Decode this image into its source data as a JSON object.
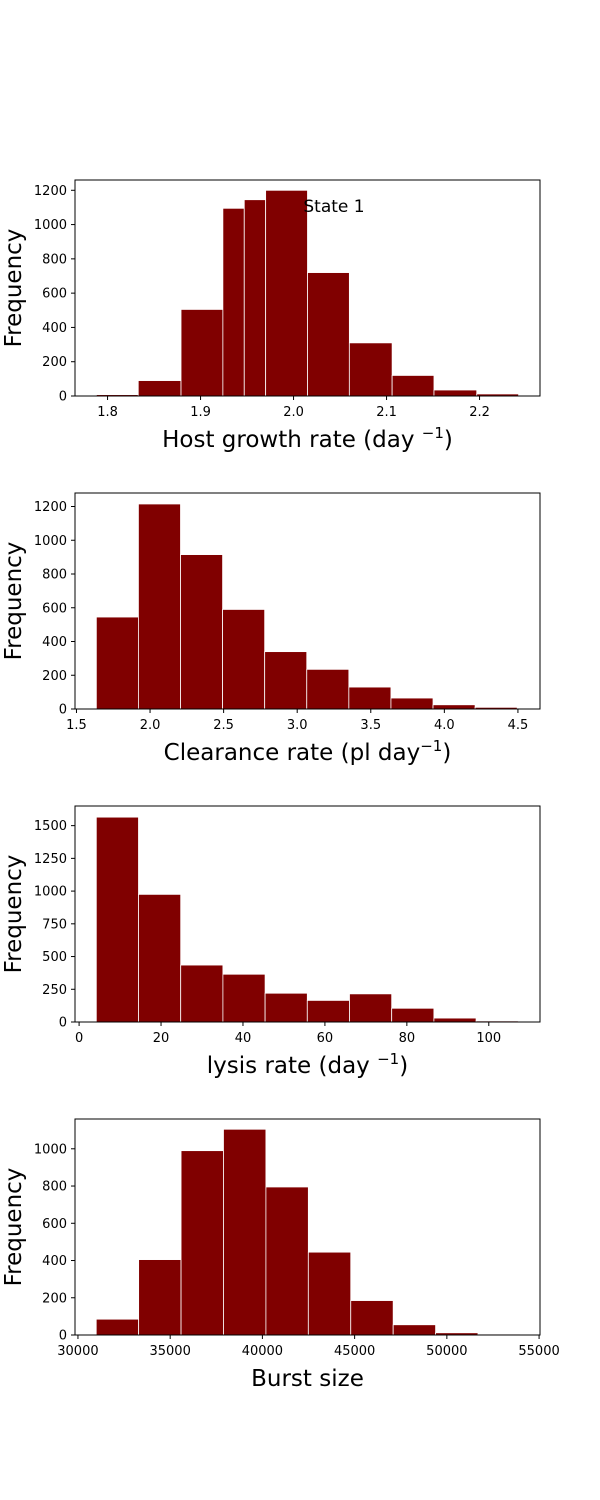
{
  "figure": {
    "bar_color": "#800000",
    "edge_color": "#ffffff"
  },
  "chart_data": [
    {
      "type": "bar",
      "annotation": "State 1",
      "xlabel_main": "Host growth rate (day ",
      "xlabel_sup": "−1",
      "xlabel_end": ")",
      "ylabel": "Frequency",
      "xlim": [
        1.765,
        2.265
      ],
      "ylim": [
        0,
        1260
      ],
      "xticks": [
        1.8,
        1.9,
        2.0,
        2.1,
        2.2
      ],
      "xtick_labels": [
        "1.8",
        "1.9",
        "2.0",
        "2.1",
        "2.2"
      ],
      "yticks": [
        0,
        200,
        400,
        600,
        800,
        1000,
        1200
      ],
      "ytick_labels": [
        "0",
        "200",
        "400",
        "600",
        "800",
        "1000",
        "1200"
      ],
      "bins": [
        {
          "x0": 1.788,
          "x1": 1.833,
          "value": 8
        },
        {
          "x0": 1.833,
          "x1": 1.879,
          "value": 90
        },
        {
          "x0": 1.879,
          "x1": 1.924,
          "value": 505
        },
        {
          "x0": 1.924,
          "x1": 1.947,
          "value": 1095
        },
        {
          "x0": 1.947,
          "x1": 1.97,
          "value": 1145
        },
        {
          "x0": 1.97,
          "x1": 2.015,
          "value": 1200
        },
        {
          "x0": 2.015,
          "x1": 2.06,
          "value": 720
        },
        {
          "x0": 2.06,
          "x1": 2.106,
          "value": 310
        },
        {
          "x0": 2.106,
          "x1": 2.151,
          "value": 120
        },
        {
          "x0": 2.151,
          "x1": 2.197,
          "value": 35
        },
        {
          "x0": 2.197,
          "x1": 2.242,
          "value": 12
        }
      ]
    },
    {
      "type": "bar",
      "xlabel_main": "Clearance rate (pl day",
      "xlabel_sup": "−1",
      "xlabel_end": ")",
      "ylabel": "Frequency",
      "xlim": [
        1.49,
        4.65
      ],
      "ylim": [
        0,
        1280
      ],
      "xticks": [
        1.5,
        2.0,
        2.5,
        3.0,
        3.5,
        4.0,
        4.5
      ],
      "xtick_labels": [
        "1.5",
        "2.0",
        "2.5",
        "3.0",
        "3.5",
        "4.0",
        "4.5"
      ],
      "yticks": [
        0,
        200,
        400,
        600,
        800,
        1000,
        1200
      ],
      "ytick_labels": [
        "0",
        "200",
        "400",
        "600",
        "800",
        "1000",
        "1200"
      ],
      "bins": [
        {
          "x0": 1.635,
          "x1": 1.921,
          "value": 545
        },
        {
          "x0": 1.921,
          "x1": 2.207,
          "value": 1215
        },
        {
          "x0": 2.207,
          "x1": 2.493,
          "value": 915
        },
        {
          "x0": 2.493,
          "x1": 2.779,
          "value": 590
        },
        {
          "x0": 2.779,
          "x1": 3.065,
          "value": 340
        },
        {
          "x0": 3.065,
          "x1": 3.351,
          "value": 235
        },
        {
          "x0": 3.351,
          "x1": 3.637,
          "value": 130
        },
        {
          "x0": 3.637,
          "x1": 3.923,
          "value": 65
        },
        {
          "x0": 3.923,
          "x1": 4.209,
          "value": 25
        },
        {
          "x0": 4.209,
          "x1": 4.495,
          "value": 10
        }
      ]
    },
    {
      "type": "bar",
      "xlabel_main": "lysis rate (day ",
      "xlabel_sup": "−1",
      "xlabel_end": ")",
      "ylabel": "Frequency",
      "xlim": [
        -1.0,
        112.5
      ],
      "ylim": [
        0,
        1650
      ],
      "xticks": [
        0,
        20,
        40,
        60,
        80,
        100
      ],
      "xtick_labels": [
        "0",
        "20",
        "40",
        "60",
        "80",
        "100"
      ],
      "yticks": [
        0,
        250,
        500,
        750,
        1000,
        1250,
        1500
      ],
      "ytick_labels": [
        "0",
        "250",
        "500",
        "750",
        "1000",
        "1250",
        "1500"
      ],
      "bins": [
        {
          "x0": 4.2,
          "x1": 14.5,
          "value": 1565
        },
        {
          "x0": 14.5,
          "x1": 24.8,
          "value": 975
        },
        {
          "x0": 24.8,
          "x1": 35.1,
          "value": 435
        },
        {
          "x0": 35.1,
          "x1": 45.4,
          "value": 365
        },
        {
          "x0": 45.4,
          "x1": 55.7,
          "value": 220
        },
        {
          "x0": 55.7,
          "x1": 66.0,
          "value": 165
        },
        {
          "x0": 66.0,
          "x1": 76.3,
          "value": 215
        },
        {
          "x0": 76.3,
          "x1": 86.6,
          "value": 105
        },
        {
          "x0": 86.6,
          "x1": 96.9,
          "value": 30
        },
        {
          "x0": 96.9,
          "x1": 107.2,
          "value": 8
        }
      ]
    },
    {
      "type": "bar",
      "xlabel_main": "Burst size",
      "xlabel_sup": "",
      "xlabel_end": "",
      "ylabel": "Frequency",
      "xlim": [
        29840,
        55050
      ],
      "ylim": [
        0,
        1160
      ],
      "xticks": [
        30000,
        35000,
        40000,
        45000,
        50000,
        55000
      ],
      "xtick_labels": [
        "30000",
        "35000",
        "40000",
        "45000",
        "50000",
        "55000"
      ],
      "yticks": [
        0,
        200,
        400,
        600,
        800,
        1000
      ],
      "ytick_labels": [
        "0",
        "200",
        "400",
        "600",
        "800",
        "1000"
      ],
      "bins": [
        {
          "x0": 30990,
          "x1": 33290,
          "value": 85
        },
        {
          "x0": 33290,
          "x1": 35590,
          "value": 405
        },
        {
          "x0": 35590,
          "x1": 37890,
          "value": 990
        },
        {
          "x0": 37890,
          "x1": 40190,
          "value": 1105
        },
        {
          "x0": 40190,
          "x1": 42490,
          "value": 795
        },
        {
          "x0": 42490,
          "x1": 44790,
          "value": 445
        },
        {
          "x0": 44790,
          "x1": 47090,
          "value": 185
        },
        {
          "x0": 47090,
          "x1": 49390,
          "value": 55
        },
        {
          "x0": 49390,
          "x1": 51690,
          "value": 12
        },
        {
          "x0": 51690,
          "x1": 53990,
          "value": 5
        }
      ]
    }
  ]
}
